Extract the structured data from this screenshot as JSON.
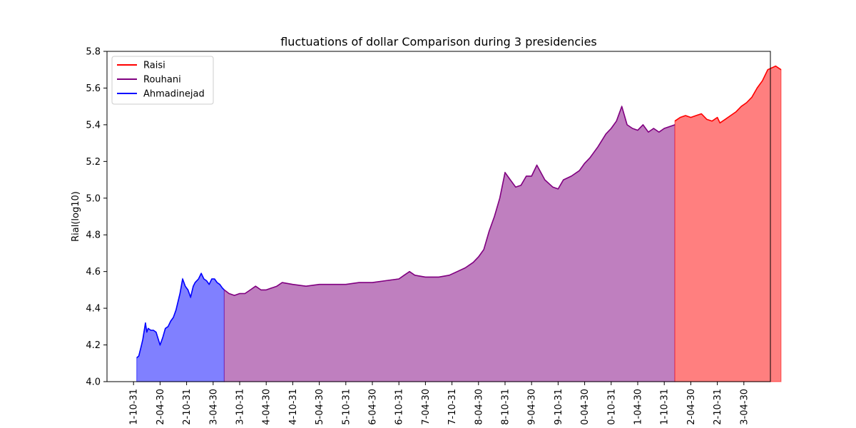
{
  "chart_data": {
    "type": "area",
    "title": "fluctuations of dollar Comparison during 3 presidencies",
    "xlabel": "",
    "ylabel": "Rial(log10)",
    "ylim": [
      4.0,
      5.8
    ],
    "yticks": [
      "4.0",
      "4.2",
      "4.4",
      "4.6",
      "4.8",
      "5.0",
      "5.2",
      "5.4",
      "5.6",
      "5.8"
    ],
    "xticks": [
      "1-10-31",
      "2-04-30",
      "2-10-31",
      "3-04-30",
      "3-10-31",
      "4-04-30",
      "4-10-31",
      "5-04-30",
      "5-10-31",
      "6-04-30",
      "6-10-31",
      "7-04-30",
      "7-10-31",
      "8-04-30",
      "8-10-31",
      "9-04-30",
      "9-10-31",
      "0-04-30",
      "0-10-31",
      "1-04-30",
      "1-10-31",
      "2-04-30",
      "2-10-31",
      "3-04-30"
    ],
    "xrange": [
      -1.0,
      24.0
    ],
    "grid": false,
    "legend_position": "top-left",
    "legend": [
      "Raisi",
      "Rouhani",
      "Ahmadinejad"
    ],
    "series": [
      {
        "name": "Ahmadinejad",
        "color": "#0000ff",
        "fill": "#8080ff",
        "x": [
          0.12,
          0.2,
          0.3,
          0.35,
          0.45,
          0.5,
          0.55,
          0.65,
          0.75,
          0.85,
          1.0,
          1.1,
          1.2,
          1.3,
          1.4,
          1.5,
          1.6,
          1.75,
          1.85,
          1.95,
          2.05,
          2.15,
          2.25,
          2.32,
          2.45,
          2.55,
          2.65,
          2.75,
          2.85,
          2.95,
          3.05,
          3.15,
          3.25,
          3.35,
          3.42
        ],
        "y": [
          4.13,
          4.14,
          4.2,
          4.23,
          4.32,
          4.27,
          4.29,
          4.28,
          4.28,
          4.27,
          4.2,
          4.24,
          4.29,
          4.3,
          4.33,
          4.35,
          4.39,
          4.48,
          4.56,
          4.52,
          4.5,
          4.46,
          4.52,
          4.54,
          4.56,
          4.59,
          4.56,
          4.55,
          4.53,
          4.56,
          4.56,
          4.54,
          4.53,
          4.51,
          4.5
        ]
      },
      {
        "name": "Rouhani",
        "color": "#800080",
        "fill": "#bf7fbf",
        "x": [
          3.42,
          3.6,
          3.8,
          4.0,
          4.2,
          4.4,
          4.6,
          4.8,
          5.0,
          5.2,
          5.4,
          5.6,
          6.0,
          6.5,
          7.0,
          7.5,
          8.0,
          8.5,
          9.0,
          9.5,
          10.0,
          10.2,
          10.4,
          10.6,
          11.0,
          11.5,
          11.9,
          12.2,
          12.5,
          12.8,
          13.0,
          13.2,
          13.4,
          13.6,
          13.8,
          14.0,
          14.2,
          14.4,
          14.6,
          14.8,
          15.0,
          15.2,
          15.5,
          15.8,
          16.0,
          16.2,
          16.5,
          16.8,
          17.0,
          17.2,
          17.5,
          17.8,
          18.0,
          18.2,
          18.4,
          18.6,
          18.8,
          19.0,
          19.2,
          19.4,
          19.6,
          19.8,
          20.0,
          20.2,
          20.4
        ],
        "y": [
          4.5,
          4.48,
          4.47,
          4.48,
          4.48,
          4.5,
          4.52,
          4.5,
          4.5,
          4.51,
          4.52,
          4.54,
          4.53,
          4.52,
          4.53,
          4.53,
          4.53,
          4.54,
          4.54,
          4.55,
          4.56,
          4.58,
          4.6,
          4.58,
          4.57,
          4.57,
          4.58,
          4.6,
          4.62,
          4.65,
          4.68,
          4.72,
          4.82,
          4.9,
          5.0,
          5.14,
          5.1,
          5.06,
          5.07,
          5.12,
          5.12,
          5.18,
          5.1,
          5.06,
          5.05,
          5.1,
          5.12,
          5.15,
          5.19,
          5.22,
          5.28,
          5.35,
          5.38,
          5.42,
          5.5,
          5.4,
          5.38,
          5.37,
          5.4,
          5.36,
          5.38,
          5.36,
          5.38,
          5.39,
          5.4
        ]
      },
      {
        "name": "Raisi",
        "color": "#ff0000",
        "fill": "#ff7f7f",
        "x": [
          20.4,
          20.6,
          20.8,
          21.0,
          21.2,
          21.4,
          21.6,
          21.8,
          22.0,
          22.1,
          22.3,
          22.5,
          22.7,
          22.9,
          23.1,
          23.3,
          23.5,
          23.7,
          23.9,
          24.2,
          24.4
        ],
        "y": [
          5.42,
          5.44,
          5.45,
          5.44,
          5.45,
          5.46,
          5.43,
          5.42,
          5.44,
          5.41,
          5.43,
          5.45,
          5.47,
          5.5,
          5.52,
          5.55,
          5.6,
          5.64,
          5.7,
          5.72,
          5.7
        ]
      }
    ]
  }
}
